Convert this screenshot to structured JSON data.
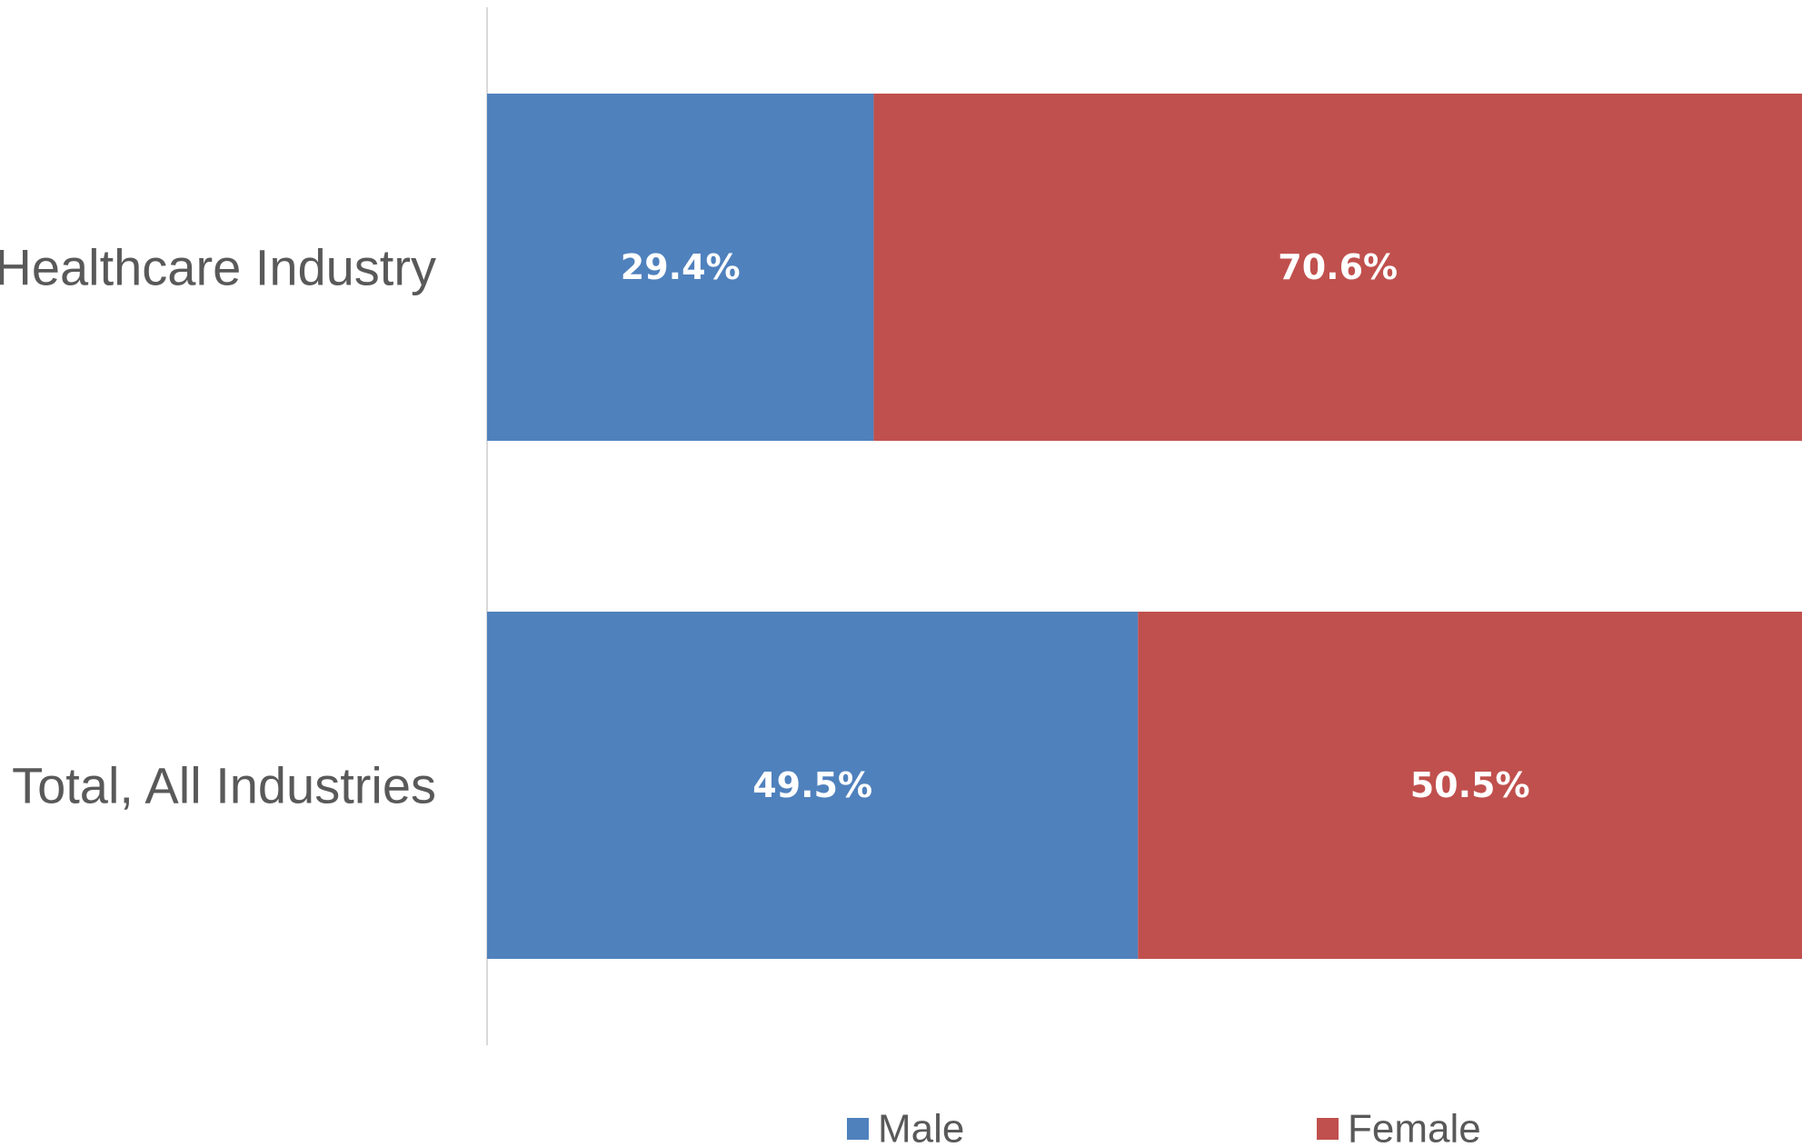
{
  "chart_data": {
    "type": "bar",
    "orientation": "horizontal",
    "stacked": true,
    "percent_stacked": true,
    "categories": [
      "Healthcare Industry",
      "Total, All Industries"
    ],
    "series": [
      {
        "name": "Male",
        "values": [
          29.4,
          49.5
        ],
        "labels": [
          "29.4%",
          "49.5%"
        ],
        "color": "#4F81BD"
      },
      {
        "name": "Female",
        "values": [
          70.6,
          50.5
        ],
        "labels": [
          "70.6%",
          "50.5%"
        ],
        "color": "#C0504D"
      }
    ],
    "xlim": [
      0,
      100
    ],
    "grid": false,
    "legend_position": "bottom"
  }
}
